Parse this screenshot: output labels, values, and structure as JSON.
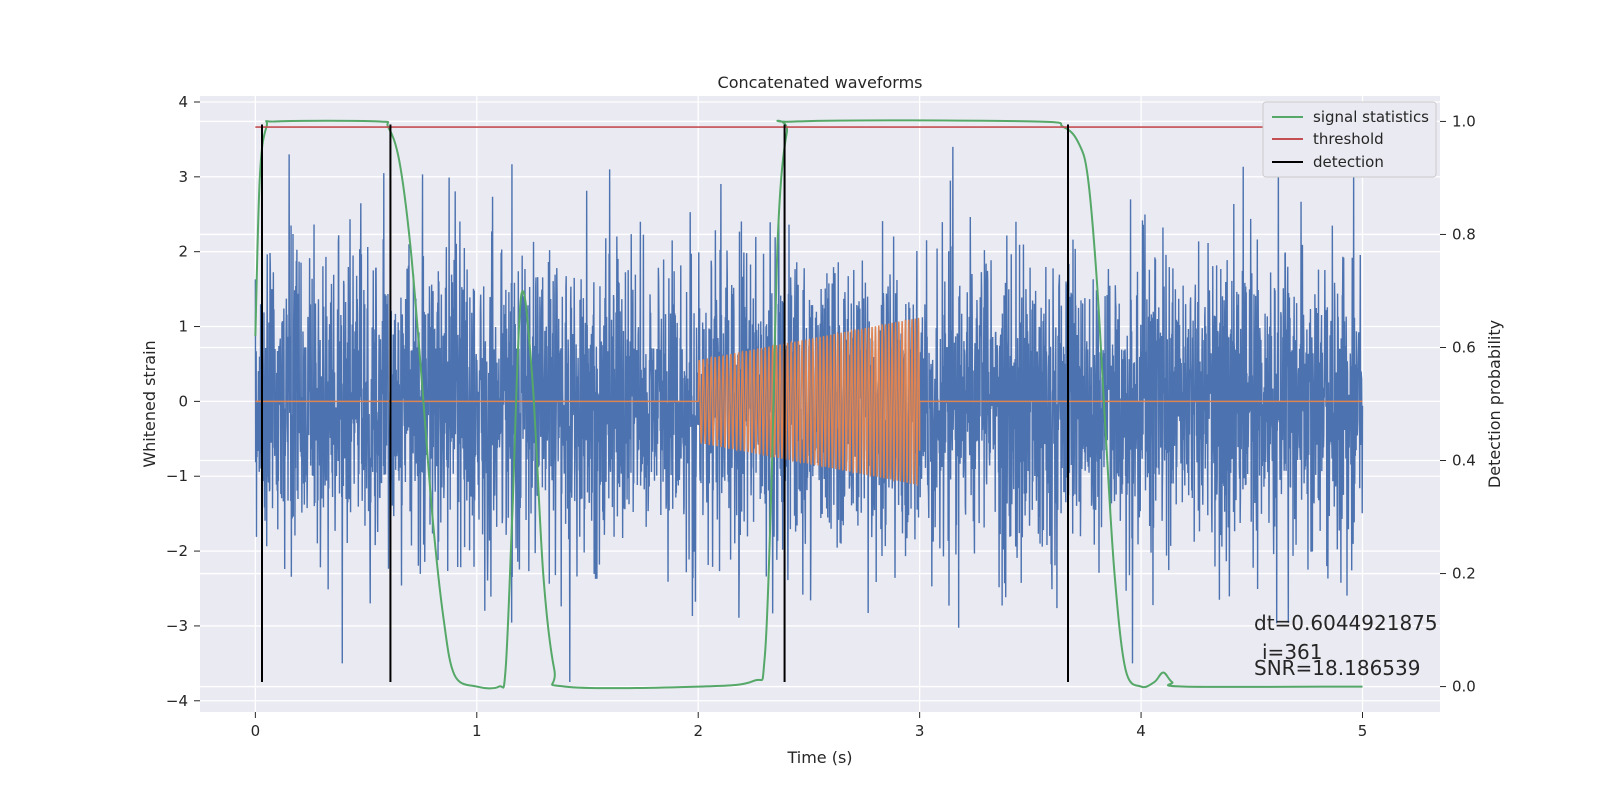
{
  "chart_data": {
    "type": "line",
    "title": "Concatenated waveforms",
    "xlabel": "Time (s)",
    "ylabel": "Whitened strain",
    "ylabel_right": "Detection probability",
    "xlim": [
      -0.25,
      5.35
    ],
    "ylim": [
      -4.15,
      4.08
    ],
    "ylim_right": [
      -0.045,
      1.045
    ],
    "x_ticks": [
      0,
      1,
      2,
      3,
      4,
      5
    ],
    "y_ticks": [
      -4,
      -3,
      -2,
      -1,
      0,
      1,
      2,
      3,
      4
    ],
    "y_ticks_right": [
      0.0,
      0.2,
      0.4,
      0.6,
      0.8,
      1.0
    ],
    "grid": true,
    "legend_position": "top-right",
    "legend": [
      {
        "label": "signal statistics",
        "color": "#55a868"
      },
      {
        "label": "threshold",
        "color": "#c44e52"
      },
      {
        "label": "detection",
        "color": "#000000"
      }
    ],
    "series": [
      {
        "name": "whitened strain",
        "color": "#4c72b0",
        "axis": "left",
        "x_range": [
          0,
          5
        ],
        "noise_std": 1.0,
        "extremes": [
          [
            1.42,
            -3.75
          ],
          [
            4.96,
            3.1
          ],
          [
            3.15,
            3.4
          ],
          [
            1.6,
            3.1
          ],
          [
            0.58,
            3.05
          ]
        ]
      },
      {
        "name": "injected waveform",
        "color": "#dd8452",
        "axis": "left",
        "start": 2.0,
        "end": 3.0,
        "amp_start": 0.55,
        "amp_end": 1.12,
        "cycles": 55
      },
      {
        "name": "signal statistics",
        "color": "#55a868",
        "axis": "right",
        "x": [
          0,
          0.02,
          0.05,
          0.1,
          0.55,
          0.6,
          0.65,
          0.7,
          0.75,
          0.8,
          0.85,
          0.9,
          1.0,
          1.1,
          1.13,
          1.16,
          1.2,
          1.25,
          1.3,
          1.35,
          1.4,
          2.0,
          2.25,
          2.3,
          2.33,
          2.36,
          2.4,
          2.45,
          3.5,
          3.65,
          3.72,
          3.76,
          3.8,
          3.84,
          3.88,
          3.93,
          4.0,
          4.06,
          4.1,
          4.14,
          4.2,
          5.0
        ],
        "y": [
          0.62,
          0.9,
          0.99,
          1.0,
          1.0,
          0.99,
          0.93,
          0.78,
          0.55,
          0.3,
          0.12,
          0.02,
          0.0,
          0.0,
          0.03,
          0.3,
          0.69,
          0.55,
          0.2,
          0.03,
          0.0,
          0.0,
          0.01,
          0.05,
          0.35,
          0.8,
          0.98,
          1.0,
          1.0,
          0.99,
          0.96,
          0.9,
          0.72,
          0.45,
          0.2,
          0.03,
          0.0,
          0.008,
          0.025,
          0.008,
          0.0,
          0.0
        ]
      },
      {
        "name": "threshold",
        "color": "#c44e52",
        "axis": "right",
        "value": 0.99,
        "x_range": [
          0,
          5
        ]
      },
      {
        "name": "detection",
        "color": "#000000",
        "axis": "left",
        "x": [
          0.03,
          0.61,
          2.39,
          3.67
        ],
        "y_range": [
          -3.75,
          3.7
        ]
      }
    ],
    "annotations": [
      "dt=0.6044921875",
      "i=361",
      "SNR=18.186539"
    ]
  }
}
